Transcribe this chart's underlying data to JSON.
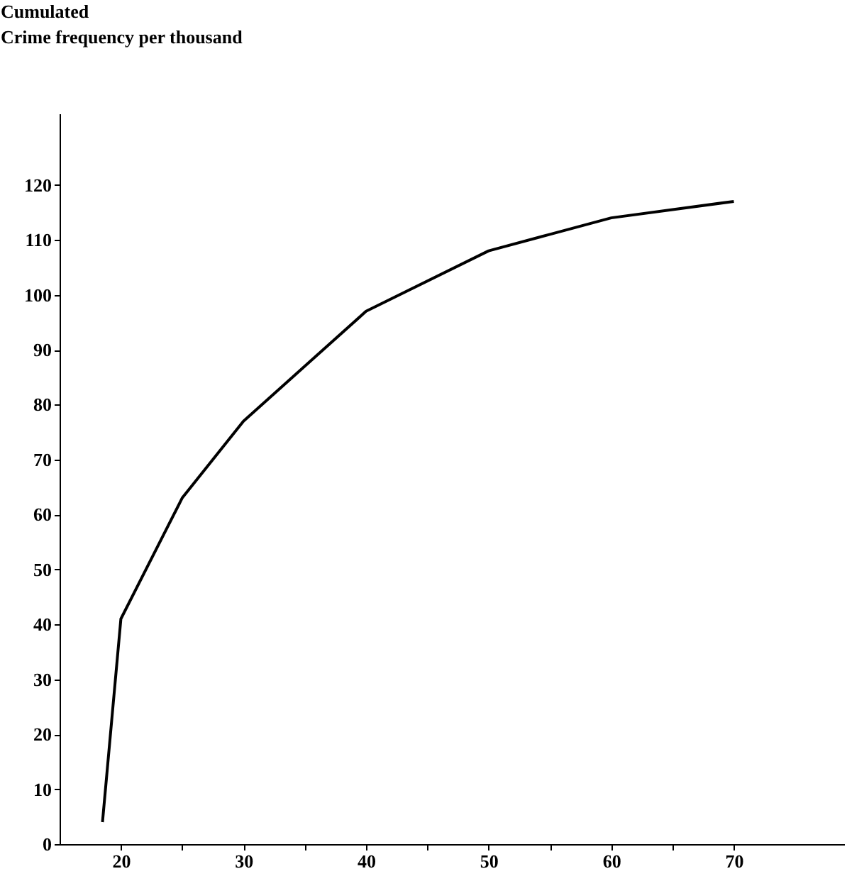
{
  "chart_data": {
    "type": "line",
    "ylabel": "Cumulated\nCrime frequency per thousand",
    "x": [
      18.5,
      20,
      25,
      30,
      40,
      50,
      55,
      60,
      70
    ],
    "series": [
      {
        "color": "#000000",
        "values": [
          4,
          41,
          63,
          77,
          97,
          108,
          111,
          114,
          117
        ]
      }
    ],
    "xlim": [
      15,
      79
    ],
    "xticks": [
      20,
      {
        "value": 25,
        "label": null
      },
      30,
      {
        "value": 35,
        "label": null
      },
      40,
      {
        "value": 45,
        "label": null
      },
      50,
      {
        "value": 55,
        "label": null
      },
      60,
      {
        "value": 65,
        "label": null
      },
      70
    ],
    "ylim": [
      0,
      133
    ],
    "yticks": [
      0,
      10,
      20,
      30,
      40,
      50,
      60,
      70,
      80,
      90,
      100,
      110,
      120
    ],
    "grid": false,
    "legend": false,
    "marker": "none",
    "line_style": "solid"
  }
}
